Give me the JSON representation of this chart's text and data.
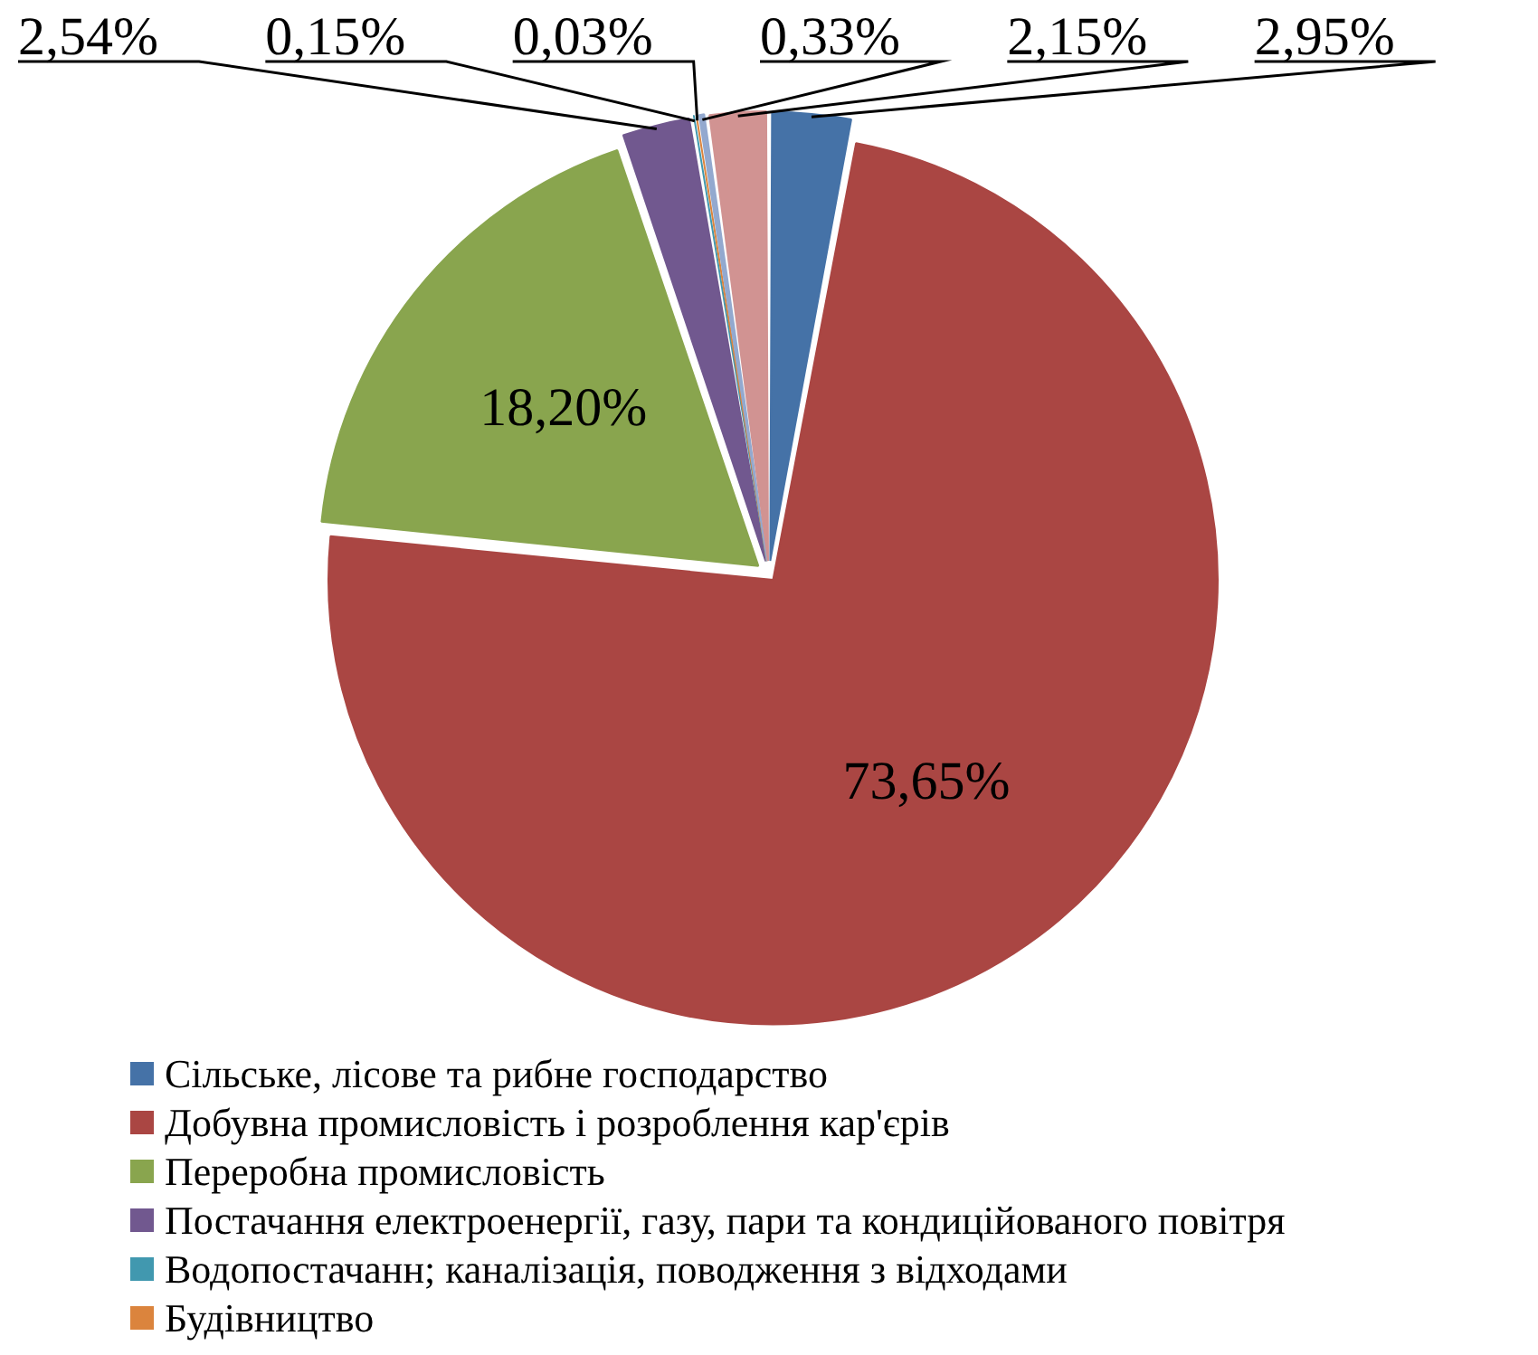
{
  "chart_data": {
    "type": "pie",
    "categories": [
      "Сільське, лісове та рибне господарство",
      "Добувна промисловість і розроблення кар'єрів",
      "Переробна промисловість",
      "Постачання електроенергії, газу, пари та кондиційованого повітря",
      "Водопостачанн; каналізація, поводження з відходами",
      "Будівництво",
      null,
      null
    ],
    "values": [
      2.95,
      73.65,
      18.2,
      2.54,
      0.15,
      0.03,
      0.33,
      2.15
    ],
    "value_labels": [
      "2,95%",
      "73,65%",
      "18,20%",
      "2,54%",
      "0,15%",
      "0,03%",
      "0,33%",
      "2,15%"
    ],
    "colors": [
      "#4572a7",
      "#aa4643",
      "#89a54e",
      "#71588f",
      "#4198af",
      "#db843d",
      "#93a9cf",
      "#d19392"
    ],
    "legend": "bottom"
  }
}
